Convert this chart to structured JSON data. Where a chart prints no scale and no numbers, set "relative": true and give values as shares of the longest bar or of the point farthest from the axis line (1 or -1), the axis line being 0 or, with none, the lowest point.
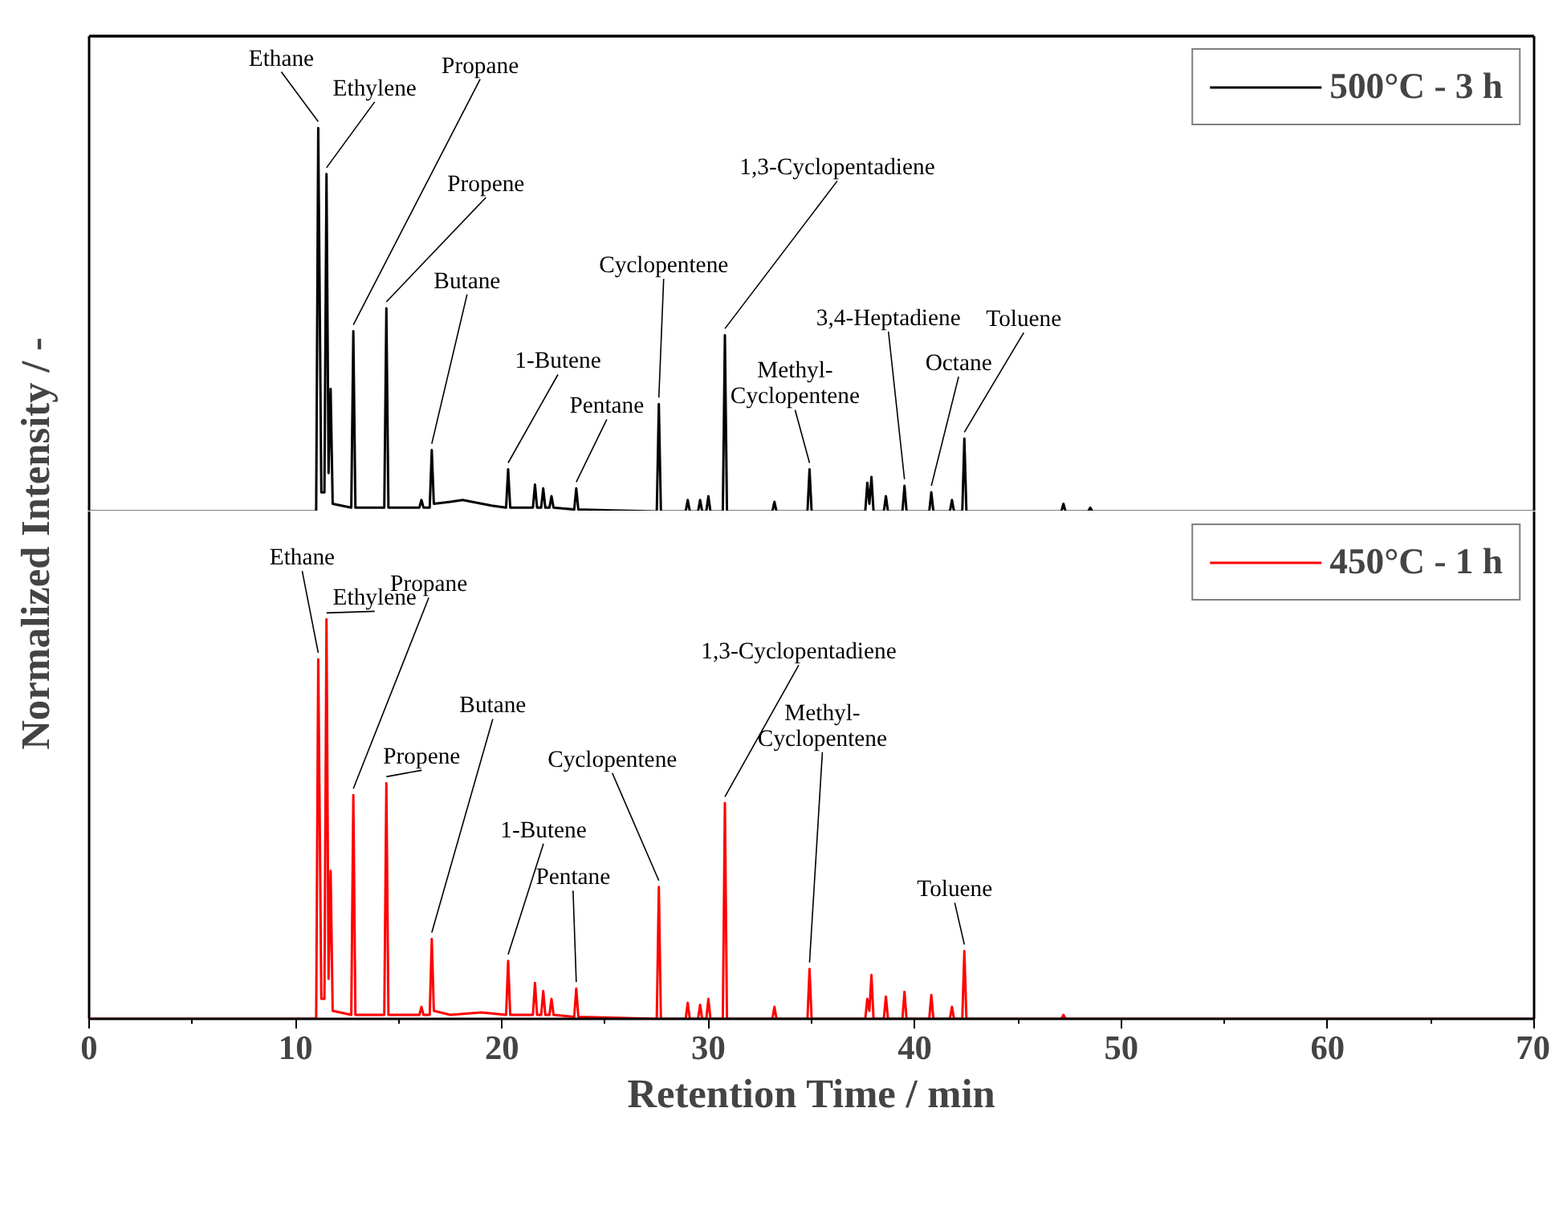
{
  "chart_data": [
    {
      "type": "line",
      "relative": true,
      "xlim": [
        0,
        70
      ],
      "tick_labels": false,
      "legend": "top right",
      "series": [
        {
          "name": "500°C - 3 h",
          "color": "#000000",
          "x": [
            0,
            11.0,
            11.1,
            11.25,
            11.4,
            11.5,
            11.6,
            11.7,
            11.8,
            12.7,
            12.8,
            12.9,
            14.3,
            14.4,
            14.5,
            16.0,
            16.1,
            16.2,
            16.5,
            16.6,
            16.7,
            17.5,
            18.1,
            19.5,
            20.2,
            20.3,
            20.4,
            21.5,
            21.6,
            21.7,
            21.9,
            22.0,
            22.1,
            22.3,
            22.4,
            22.5,
            23.5,
            23.6,
            23.7,
            27.5,
            27.6,
            27.7,
            28.9,
            29.0,
            29.1,
            29.5,
            29.6,
            29.7,
            29.9,
            30.0,
            30.1,
            30.7,
            30.8,
            30.9,
            33.1,
            33.2,
            33.3,
            34.8,
            34.9,
            35.0,
            37.6,
            37.7,
            37.8,
            37.9,
            38.0,
            38.5,
            38.6,
            38.7,
            39.4,
            39.5,
            39.6,
            40.7,
            40.8,
            40.9,
            41.7,
            41.8,
            41.9,
            42.3,
            42.4,
            42.5,
            47.1,
            47.2,
            47.3,
            48.4,
            48.5,
            48.6,
            70
          ],
          "values": [
            0,
            0,
            1.0,
            0.05,
            0.05,
            0.88,
            0.1,
            0.32,
            0.02,
            0.01,
            0.47,
            0.01,
            0.01,
            0.53,
            0.01,
            0.01,
            0.03,
            0.01,
            0.01,
            0.16,
            0.02,
            0.025,
            0.03,
            0.015,
            0.01,
            0.11,
            0.01,
            0.01,
            0.07,
            0.01,
            0.01,
            0.06,
            0.01,
            0.01,
            0.04,
            0.01,
            0.005,
            0.06,
            0.005,
            0,
            0.28,
            0,
            0,
            0.03,
            0,
            0,
            0.03,
            0,
            0,
            0.04,
            0,
            0,
            0.46,
            0,
            0,
            0.025,
            0,
            0,
            0.11,
            0,
            0,
            0.075,
            0.02,
            0.09,
            0,
            0,
            0.04,
            0,
            0,
            0.067,
            0,
            0,
            0.05,
            0,
            0,
            0.03,
            0,
            0,
            0.19,
            0,
            0,
            0.02,
            0,
            0,
            0.01,
            0,
            0
          ]
        }
      ],
      "annotations": [
        {
          "text": "Ethane",
          "x": 11.1,
          "y": 1.0
        },
        {
          "text": "Ethylene",
          "x": 11.5,
          "y": 0.88
        },
        {
          "text": "Propane",
          "x": 12.8,
          "y": 0.47
        },
        {
          "text": "Propene",
          "x": 14.4,
          "y": 0.53
        },
        {
          "text": "Butane",
          "x": 16.6,
          "y": 0.16
        },
        {
          "text": "1-Butene",
          "x": 20.3,
          "y": 0.11
        },
        {
          "text": "Pentane",
          "x": 23.6,
          "y": 0.06
        },
        {
          "text": "Cyclopentene",
          "x": 27.6,
          "y": 0.28
        },
        {
          "text": "1,3-Cyclopentadiene",
          "x": 30.8,
          "y": 0.46
        },
        {
          "text": "Methyl-\nCyclopentene",
          "x": 34.9,
          "y": 0.11
        },
        {
          "text": "3,4-Heptadiene",
          "x": 39.5,
          "y": 0.067
        },
        {
          "text": "Octane",
          "x": 40.8,
          "y": 0.05
        },
        {
          "text": "Toluene",
          "x": 42.4,
          "y": 0.19
        }
      ]
    },
    {
      "type": "line",
      "relative": true,
      "xlim": [
        0,
        70
      ],
      "xticks": [
        0,
        10,
        20,
        30,
        40,
        50,
        60,
        70
      ],
      "tick_labels": "x",
      "legend": "top right",
      "xlabel": "Retention Time / min",
      "ylabel": "Normalized Intensity / -",
      "series": [
        {
          "name": "450°C - 1 h",
          "color": "#ff0000",
          "x": [
            0,
            11.0,
            11.1,
            11.25,
            11.4,
            11.5,
            11.6,
            11.7,
            11.8,
            12.7,
            12.8,
            12.9,
            14.3,
            14.4,
            14.5,
            16.0,
            16.1,
            16.2,
            16.5,
            16.6,
            16.7,
            17.5,
            19.0,
            20.2,
            20.3,
            20.4,
            21.5,
            21.6,
            21.7,
            21.9,
            22.0,
            22.1,
            22.3,
            22.4,
            22.5,
            23.5,
            23.6,
            23.7,
            27.5,
            27.6,
            27.7,
            28.9,
            29.0,
            29.1,
            29.5,
            29.6,
            29.7,
            29.9,
            30.0,
            30.1,
            30.7,
            30.8,
            30.9,
            33.1,
            33.2,
            33.3,
            34.8,
            34.9,
            35.0,
            37.6,
            37.7,
            37.8,
            37.9,
            38.0,
            38.5,
            38.6,
            38.7,
            39.4,
            39.5,
            39.6,
            40.7,
            40.8,
            40.9,
            41.7,
            41.8,
            41.9,
            42.3,
            42.4,
            42.5,
            47.1,
            47.2,
            47.3,
            70
          ],
          "values": [
            0,
            0,
            0.9,
            0.05,
            0.05,
            1.0,
            0.1,
            0.37,
            0.02,
            0.01,
            0.56,
            0.01,
            0.01,
            0.59,
            0.01,
            0.01,
            0.03,
            0.01,
            0.01,
            0.2,
            0.02,
            0.01,
            0.016,
            0.01,
            0.145,
            0.01,
            0.01,
            0.09,
            0.01,
            0.01,
            0.07,
            0.01,
            0.01,
            0.05,
            0.01,
            0.005,
            0.076,
            0.005,
            0,
            0.33,
            0,
            0,
            0.04,
            0,
            0,
            0.035,
            0,
            0,
            0.05,
            0,
            0,
            0.54,
            0,
            0,
            0.03,
            0,
            0,
            0.125,
            0,
            0,
            0.05,
            0.02,
            0.11,
            0,
            0,
            0.056,
            0,
            0,
            0.068,
            0,
            0,
            0.06,
            0,
            0,
            0.03,
            0,
            0,
            0.17,
            0,
            0,
            0.01,
            0,
            0
          ]
        }
      ],
      "annotations": [
        {
          "text": "Ethane",
          "x": 11.1,
          "y": 0.9
        },
        {
          "text": "Ethylene",
          "x": 11.5,
          "y": 1.0
        },
        {
          "text": "Propane",
          "x": 12.8,
          "y": 0.56
        },
        {
          "text": "Propene",
          "x": 14.4,
          "y": 0.59
        },
        {
          "text": "Butane",
          "x": 16.6,
          "y": 0.2
        },
        {
          "text": "1-Butene",
          "x": 20.3,
          "y": 0.145
        },
        {
          "text": "Pentane",
          "x": 23.6,
          "y": 0.076
        },
        {
          "text": "Cyclopentene",
          "x": 27.6,
          "y": 0.33
        },
        {
          "text": "1,3-Cyclopentadiene",
          "x": 30.8,
          "y": 0.54
        },
        {
          "text": "Methyl-\nCyclopentene",
          "x": 34.9,
          "y": 0.125
        },
        {
          "text": "Toluene",
          "x": 42.4,
          "y": 0.17
        }
      ]
    }
  ]
}
